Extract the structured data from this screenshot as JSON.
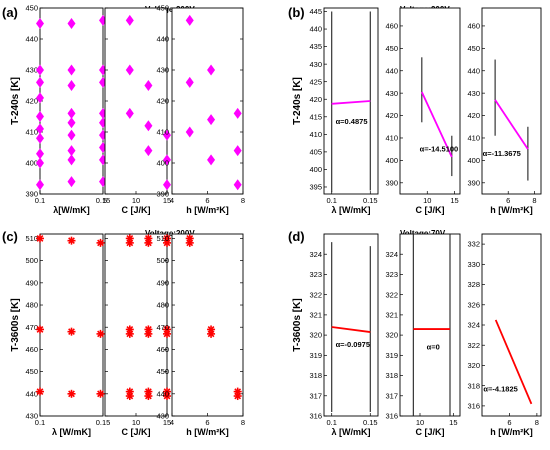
{
  "chart_data": [
    {
      "id": "a",
      "panel_label": "(a)",
      "type": "scatter",
      "title": "Voltage:200V",
      "ylabel": "T-240s [K]",
      "ylim": [
        390,
        450
      ],
      "yticks": [
        390,
        400,
        410,
        420,
        430,
        440,
        450
      ],
      "marker": {
        "shape": "diamond",
        "color": "#ff00ff"
      },
      "subplots": [
        {
          "xlabel": "λ[W/mK]",
          "xlim": [
            0.1,
            0.15
          ],
          "xticks": [
            {
              "v": 0.1,
              "label": "0.1"
            },
            {
              "v": 0.15,
              "label": "0.15"
            }
          ],
          "points": [
            {
              "x": 0.1,
              "y": 445
            },
            {
              "x": 0.1,
              "y": 430
            },
            {
              "x": 0.1,
              "y": 426
            },
            {
              "x": 0.1,
              "y": 421
            },
            {
              "x": 0.1,
              "y": 415
            },
            {
              "x": 0.1,
              "y": 411
            },
            {
              "x": 0.1,
              "y": 408
            },
            {
              "x": 0.1,
              "y": 403
            },
            {
              "x": 0.1,
              "y": 400
            },
            {
              "x": 0.1,
              "y": 393
            },
            {
              "x": 0.125,
              "y": 445
            },
            {
              "x": 0.125,
              "y": 430
            },
            {
              "x": 0.125,
              "y": 425
            },
            {
              "x": 0.125,
              "y": 416
            },
            {
              "x": 0.125,
              "y": 413
            },
            {
              "x": 0.125,
              "y": 409
            },
            {
              "x": 0.125,
              "y": 404
            },
            {
              "x": 0.125,
              "y": 401
            },
            {
              "x": 0.125,
              "y": 394
            },
            {
              "x": 0.15,
              "y": 446
            },
            {
              "x": 0.15,
              "y": 430
            },
            {
              "x": 0.15,
              "y": 426
            },
            {
              "x": 0.15,
              "y": 416
            },
            {
              "x": 0.15,
              "y": 413
            },
            {
              "x": 0.15,
              "y": 409
            },
            {
              "x": 0.15,
              "y": 405
            },
            {
              "x": 0.15,
              "y": 401
            },
            {
              "x": 0.15,
              "y": 394
            }
          ]
        },
        {
          "xlabel": "C [J/K]",
          "xlim": [
            5,
            15
          ],
          "xticks": [
            {
              "v": 5,
              "label": "5"
            },
            {
              "v": 10,
              "label": "10"
            },
            {
              "v": 15,
              "label": "15"
            }
          ],
          "points": [
            {
              "x": 9,
              "y": 446
            },
            {
              "x": 9,
              "y": 430
            },
            {
              "x": 9,
              "y": 416
            },
            {
              "x": 12,
              "y": 425
            },
            {
              "x": 12,
              "y": 412
            },
            {
              "x": 12,
              "y": 404
            },
            {
              "x": 15,
              "y": 409
            },
            {
              "x": 15,
              "y": 401
            },
            {
              "x": 15,
              "y": 393
            }
          ]
        },
        {
          "xlabel": "h [W/m²K]",
          "xlim": [
            4,
            8
          ],
          "xticks": [
            {
              "v": 4,
              "label": "4"
            },
            {
              "v": 6,
              "label": "6"
            },
            {
              "v": 8,
              "label": "8"
            }
          ],
          "points": [
            {
              "x": 5,
              "y": 446
            },
            {
              "x": 5,
              "y": 426
            },
            {
              "x": 5,
              "y": 410
            },
            {
              "x": 6.2,
              "y": 430
            },
            {
              "x": 6.2,
              "y": 414
            },
            {
              "x": 6.2,
              "y": 401
            },
            {
              "x": 7.7,
              "y": 416
            },
            {
              "x": 7.7,
              "y": 404
            },
            {
              "x": 7.7,
              "y": 393
            }
          ]
        }
      ]
    },
    {
      "id": "b",
      "panel_label": "(b)",
      "type": "line",
      "title": "Voltage:200V",
      "ylabel": "T-240s [K]",
      "line_color": "#ff00ff",
      "subplots": [
        {
          "xlabel": "λ [W/mK]",
          "xlim": [
            0.09,
            0.16
          ],
          "xticks": [
            {
              "v": 0.1,
              "label": "0.1"
            },
            {
              "v": 0.15,
              "label": "0.15"
            }
          ],
          "ylim": [
            393,
            446
          ],
          "yticks": [
            395,
            400,
            405,
            410,
            415,
            420,
            425,
            430,
            435,
            440,
            445
          ],
          "line": [
            {
              "x": 0.1,
              "y": 418.7
            },
            {
              "x": 0.15,
              "y": 419.5
            }
          ],
          "errorbars": [
            {
              "x": 0.1,
              "lo": 393.5,
              "hi": 445
            },
            {
              "x": 0.15,
              "lo": 394,
              "hi": 445
            }
          ],
          "annotation": "α=0.4875",
          "annotation_at": {
            "x": 0.105,
            "y": 413
          }
        },
        {
          "xlabel": "C [J/K]",
          "xlim": [
            5,
            16
          ],
          "xticks": [
            {
              "v": 10,
              "label": "10"
            },
            {
              "v": 15,
              "label": "15"
            }
          ],
          "ylim": [
            385,
            468
          ],
          "yticks": [
            390,
            400,
            410,
            420,
            430,
            440,
            450,
            460
          ],
          "line": [
            {
              "x": 9,
              "y": 430.5
            },
            {
              "x": 14.5,
              "y": 401.5
            }
          ],
          "errorbars": [
            {
              "x": 9,
              "lo": 417,
              "hi": 446
            },
            {
              "x": 14.5,
              "lo": 393,
              "hi": 411
            }
          ],
          "annotation": "α=-14.5100",
          "annotation_at": {
            "x": 8.6,
            "y": 404
          }
        },
        {
          "xlabel": "h [W/m²K]",
          "xlim": [
            4,
            8.5
          ],
          "xticks": [
            {
              "v": 6,
              "label": "6"
            },
            {
              "v": 8,
              "label": "8"
            }
          ],
          "ylim": [
            385,
            468
          ],
          "yticks": [
            390,
            400,
            410,
            420,
            430,
            440,
            450,
            460
          ],
          "line": [
            {
              "x": 5,
              "y": 427
            },
            {
              "x": 7.5,
              "y": 405
            }
          ],
          "errorbars": [
            {
              "x": 5,
              "lo": 411,
              "hi": 445
            },
            {
              "x": 7.5,
              "lo": 391,
              "hi": 415
            }
          ],
          "annotation": "α=-11.3675",
          "annotation_at": {
            "x": 4.05,
            "y": 402
          }
        }
      ]
    },
    {
      "id": "c",
      "panel_label": "(c)",
      "type": "scatter",
      "title": "Voltage:200V",
      "ylabel": "T-3600s [K]",
      "ylim": [
        430,
        512
      ],
      "yticks": [
        430,
        440,
        450,
        460,
        470,
        480,
        490,
        500,
        510
      ],
      "marker": {
        "shape": "asterisk",
        "color": "#ff0000"
      },
      "subplots": [
        {
          "xlabel": "λ [W/mK]",
          "xlim": [
            0.1,
            0.15
          ],
          "xticks": [
            {
              "v": 0.1,
              "label": "0.1"
            },
            {
              "v": 0.15,
              "label": "0.15"
            }
          ],
          "points": [
            {
              "x": 0.1,
              "y": 510
            },
            {
              "x": 0.1,
              "y": 469
            },
            {
              "x": 0.1,
              "y": 441
            },
            {
              "x": 0.125,
              "y": 509
            },
            {
              "x": 0.125,
              "y": 468
            },
            {
              "x": 0.125,
              "y": 440
            },
            {
              "x": 0.148,
              "y": 508
            },
            {
              "x": 0.148,
              "y": 467
            },
            {
              "x": 0.148,
              "y": 440
            }
          ]
        },
        {
          "xlabel": "C [J/K]",
          "xlim": [
            5,
            15
          ],
          "xticks": [
            {
              "v": 10,
              "label": "10"
            },
            {
              "v": 15,
              "label": "15"
            }
          ],
          "points": [
            {
              "x": 9,
              "y": 510
            },
            {
              "x": 9,
              "y": 508
            },
            {
              "x": 9,
              "y": 469
            },
            {
              "x": 9,
              "y": 467
            },
            {
              "x": 9,
              "y": 441
            },
            {
              "x": 9,
              "y": 439
            },
            {
              "x": 12,
              "y": 510
            },
            {
              "x": 12,
              "y": 508
            },
            {
              "x": 12,
              "y": 469
            },
            {
              "x": 12,
              "y": 467
            },
            {
              "x": 12,
              "y": 441
            },
            {
              "x": 12,
              "y": 439
            },
            {
              "x": 15,
              "y": 510
            },
            {
              "x": 15,
              "y": 508
            },
            {
              "x": 15,
              "y": 469
            },
            {
              "x": 15,
              "y": 467
            },
            {
              "x": 15,
              "y": 441
            },
            {
              "x": 15,
              "y": 439
            }
          ]
        },
        {
          "xlabel": "h [W/m²K]",
          "xlim": [
            4,
            8
          ],
          "xticks": [
            {
              "v": 4,
              "label": "4"
            },
            {
              "v": 6,
              "label": "6"
            },
            {
              "v": 8,
              "label": "8"
            }
          ],
          "points": [
            {
              "x": 5,
              "y": 510
            },
            {
              "x": 5,
              "y": 508
            },
            {
              "x": 6.2,
              "y": 469
            },
            {
              "x": 6.2,
              "y": 467
            },
            {
              "x": 7.7,
              "y": 441
            },
            {
              "x": 7.7,
              "y": 439
            }
          ]
        }
      ]
    },
    {
      "id": "d",
      "panel_label": "(d)",
      "type": "line",
      "title": "Voltage:70V",
      "ylabel": "T-3600s [K]",
      "line_color": "#ff0000",
      "subplots": [
        {
          "xlabel": "λ [W/mK]",
          "xlim": [
            0.09,
            0.16
          ],
          "xticks": [
            {
              "v": 0.1,
              "label": "0.1"
            },
            {
              "v": 0.15,
              "label": "0.15"
            }
          ],
          "ylim": [
            316,
            325
          ],
          "yticks": [
            316,
            317,
            318,
            319,
            320,
            321,
            322,
            323,
            324
          ],
          "line": [
            {
              "x": 0.1,
              "y": 320.4
            },
            {
              "x": 0.15,
              "y": 320.15
            }
          ],
          "errorbars": [
            {
              "x": 0.1,
              "lo": 316.2,
              "hi": 324.6
            },
            {
              "x": 0.15,
              "lo": 316.2,
              "hi": 324.4
            }
          ],
          "annotation": "α=-0.0975",
          "annotation_at": {
            "x": 0.105,
            "y": 319.4
          }
        },
        {
          "xlabel": "C [J/K]",
          "xlim": [
            7,
            16
          ],
          "xticks": [
            {
              "v": 10,
              "label": "10"
            },
            {
              "v": 15,
              "label": "15"
            }
          ],
          "ylim": [
            316,
            325
          ],
          "yticks": [
            316,
            317,
            318,
            319,
            320,
            321,
            322,
            323,
            324
          ],
          "line": [
            {
              "x": 9,
              "y": 320.3
            },
            {
              "x": 14.5,
              "y": 320.3
            }
          ],
          "errorbars": [
            {
              "x": 9,
              "lo": 316,
              "hi": 325
            },
            {
              "x": 14.5,
              "lo": 316,
              "hi": 325
            }
          ],
          "annotation": "α=0",
          "annotation_at": {
            "x": 11,
            "y": 319.3
          }
        },
        {
          "xlabel": "h [W/m²K]",
          "xlim": [
            4,
            8.3
          ],
          "xticks": [
            {
              "v": 6,
              "label": "6"
            },
            {
              "v": 8,
              "label": "8"
            }
          ],
          "ylim": [
            315,
            333
          ],
          "yticks": [
            316,
            318,
            320,
            322,
            324,
            326,
            328,
            330,
            332
          ],
          "line": [
            {
              "x": 5,
              "y": 324.5
            },
            {
              "x": 7.6,
              "y": 316.2
            }
          ],
          "errorbars": [],
          "annotation": "α=-4.1825",
          "annotation_at": {
            "x": 4.1,
            "y": 317.4
          }
        }
      ]
    }
  ]
}
